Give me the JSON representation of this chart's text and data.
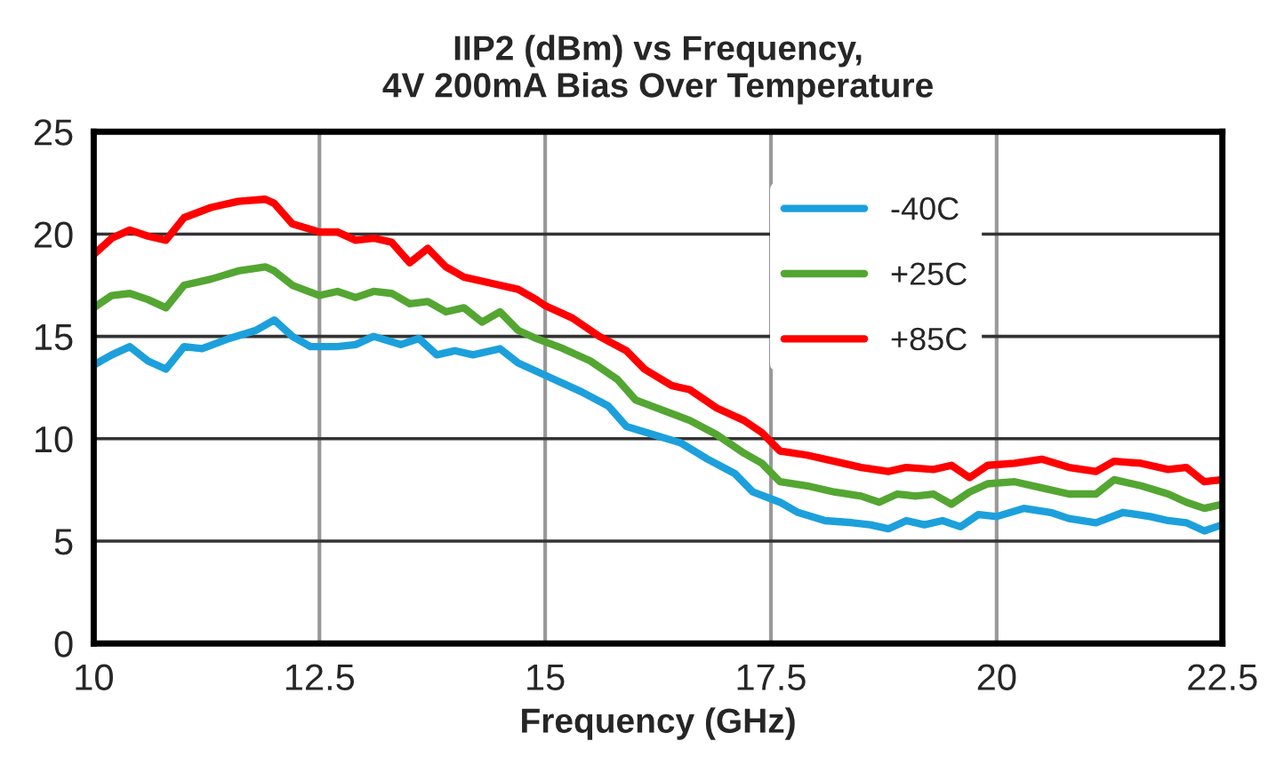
{
  "chart_data": {
    "type": "line",
    "title": "IIP2 (dBm) vs Frequency,\n4V 200mA Bias Over Temperature",
    "xlabel": "Frequency (GHz)",
    "xlim": [
      10,
      22.5
    ],
    "xticks": [
      10,
      12.5,
      15,
      17.5,
      20,
      22.5
    ],
    "ylim": [
      0,
      25
    ],
    "yticks": [
      0,
      5,
      10,
      15,
      20,
      25
    ],
    "grid": true,
    "legend": "top right",
    "marker": "none",
    "line_style": "solid",
    "series": [
      {
        "name": "-40C",
        "color": "#1ca0dc",
        "x": [
          10,
          10.2,
          10.4,
          10.6,
          10.8,
          11.0,
          11.2,
          11.5,
          11.8,
          12.0,
          12.2,
          12.4,
          12.7,
          12.9,
          13.1,
          13.4,
          13.6,
          13.8,
          14.0,
          14.2,
          14.5,
          14.7,
          14.9,
          15.1,
          15.4,
          15.7,
          15.9,
          16.2,
          16.5,
          16.8,
          17.1,
          17.3,
          17.6,
          17.8,
          18.1,
          18.4,
          18.6,
          18.8,
          19.0,
          19.2,
          19.4,
          19.6,
          19.8,
          20.0,
          20.3,
          20.6,
          20.8,
          21.1,
          21.4,
          21.7,
          21.9,
          22.1,
          22.3,
          22.5
        ],
        "values": [
          13.6,
          14.1,
          14.5,
          13.8,
          13.4,
          14.5,
          14.4,
          14.9,
          15.3,
          15.8,
          15.0,
          14.5,
          14.5,
          14.6,
          15.0,
          14.6,
          14.9,
          14.1,
          14.3,
          14.1,
          14.4,
          13.7,
          13.3,
          12.9,
          12.3,
          11.6,
          10.6,
          10.2,
          9.8,
          9.0,
          8.3,
          7.4,
          6.9,
          6.4,
          6.0,
          5.9,
          5.8,
          5.6,
          6.0,
          5.8,
          6.0,
          5.7,
          6.3,
          6.2,
          6.6,
          6.4,
          6.1,
          5.9,
          6.4,
          6.2,
          6.0,
          5.9,
          5.5,
          5.8
        ]
      },
      {
        "name": "+25C",
        "color": "#54a632",
        "x": [
          10,
          10.2,
          10.4,
          10.6,
          10.8,
          11.0,
          11.3,
          11.6,
          11.9,
          12.0,
          12.2,
          12.5,
          12.7,
          12.9,
          13.1,
          13.3,
          13.5,
          13.7,
          13.9,
          14.1,
          14.3,
          14.5,
          14.7,
          14.9,
          15.2,
          15.5,
          15.8,
          16.0,
          16.3,
          16.6,
          16.9,
          17.2,
          17.4,
          17.6,
          17.9,
          18.2,
          18.5,
          18.7,
          18.9,
          19.1,
          19.3,
          19.5,
          19.7,
          19.9,
          20.2,
          20.5,
          20.8,
          21.1,
          21.3,
          21.6,
          21.9,
          22.1,
          22.3,
          22.5
        ],
        "values": [
          16.4,
          17.0,
          17.1,
          16.8,
          16.4,
          17.5,
          17.8,
          18.2,
          18.4,
          18.2,
          17.5,
          17.0,
          17.2,
          16.9,
          17.2,
          17.1,
          16.6,
          16.7,
          16.2,
          16.4,
          15.7,
          16.2,
          15.3,
          14.9,
          14.4,
          13.8,
          12.9,
          11.9,
          11.4,
          10.9,
          10.2,
          9.3,
          8.8,
          7.9,
          7.7,
          7.4,
          7.2,
          6.9,
          7.3,
          7.2,
          7.3,
          6.8,
          7.4,
          7.8,
          7.9,
          7.6,
          7.3,
          7.3,
          8.0,
          7.7,
          7.3,
          6.9,
          6.6,
          6.8
        ]
      },
      {
        "name": "+85C",
        "color": "#ff0000",
        "x": [
          10,
          10.2,
          10.4,
          10.6,
          10.8,
          11.0,
          11.3,
          11.6,
          11.9,
          12.0,
          12.2,
          12.5,
          12.7,
          12.9,
          13.1,
          13.3,
          13.5,
          13.7,
          13.9,
          14.1,
          14.4,
          14.7,
          14.9,
          15.0,
          15.3,
          15.6,
          15.9,
          16.1,
          16.4,
          16.6,
          16.9,
          17.2,
          17.4,
          17.6,
          17.9,
          18.2,
          18.5,
          18.8,
          19.0,
          19.3,
          19.5,
          19.7,
          19.9,
          20.2,
          20.5,
          20.8,
          21.1,
          21.3,
          21.6,
          21.9,
          22.1,
          22.3,
          22.5
        ],
        "values": [
          19.0,
          19.8,
          20.2,
          19.9,
          19.7,
          20.8,
          21.3,
          21.6,
          21.7,
          21.5,
          20.5,
          20.1,
          20.1,
          19.7,
          19.8,
          19.6,
          18.6,
          19.3,
          18.4,
          17.9,
          17.6,
          17.3,
          16.8,
          16.5,
          15.9,
          15.0,
          14.3,
          13.4,
          12.6,
          12.4,
          11.5,
          10.9,
          10.3,
          9.4,
          9.2,
          8.9,
          8.6,
          8.4,
          8.6,
          8.5,
          8.7,
          8.1,
          8.7,
          8.8,
          9.0,
          8.6,
          8.4,
          8.9,
          8.8,
          8.5,
          8.6,
          7.9,
          8.0
        ]
      }
    ]
  }
}
